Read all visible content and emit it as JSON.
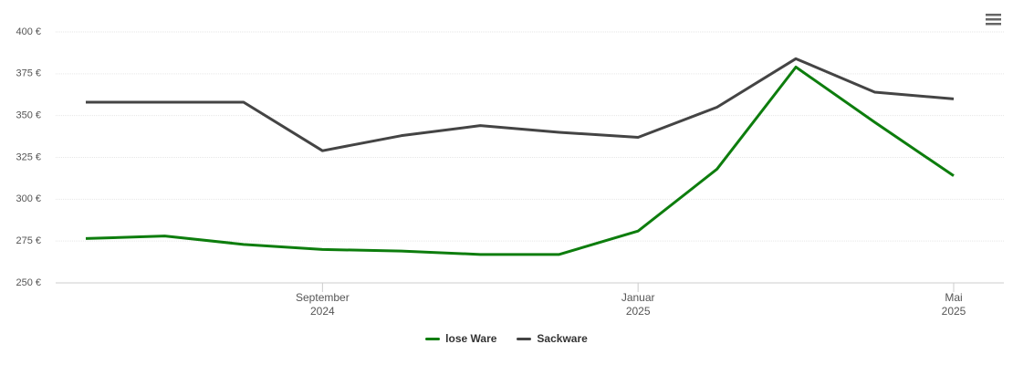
{
  "chart_data": {
    "type": "line",
    "x": [
      "2024-06",
      "2024-07",
      "2024-08",
      "2024-09",
      "2024-10",
      "2024-11",
      "2024-12",
      "2025-01",
      "2025-02",
      "2025-03",
      "2025-04",
      "2025-05"
    ],
    "series": [
      {
        "name": "lose Ware",
        "color": "#0d7d0d",
        "values": [
          276.5,
          278,
          273,
          270,
          269,
          267,
          267,
          281,
          318,
          379,
          346,
          314
        ]
      },
      {
        "name": "Sackware",
        "color": "#444444",
        "values": [
          358,
          358,
          358,
          329,
          338,
          344,
          340,
          337,
          355,
          384,
          364,
          360
        ]
      }
    ],
    "xlim": [
      "2024-06",
      "2025-05"
    ],
    "xticks": [
      {
        "value": "2024-09",
        "label": "September 2024"
      },
      {
        "value": "2025-01",
        "label": "Januar 2025"
      },
      {
        "value": "2025-05",
        "label": "Mai 2025"
      }
    ],
    "ylim": [
      250,
      400
    ],
    "yticks": [
      {
        "value": 250,
        "label": "250 €"
      },
      {
        "value": 275,
        "label": "275 €"
      },
      {
        "value": 300,
        "label": "300 €"
      },
      {
        "value": 325,
        "label": "325 €"
      },
      {
        "value": 350,
        "label": "350 €"
      },
      {
        "value": 375,
        "label": "375 €"
      },
      {
        "value": 400,
        "label": "400 €"
      }
    ],
    "grid": true
  }
}
